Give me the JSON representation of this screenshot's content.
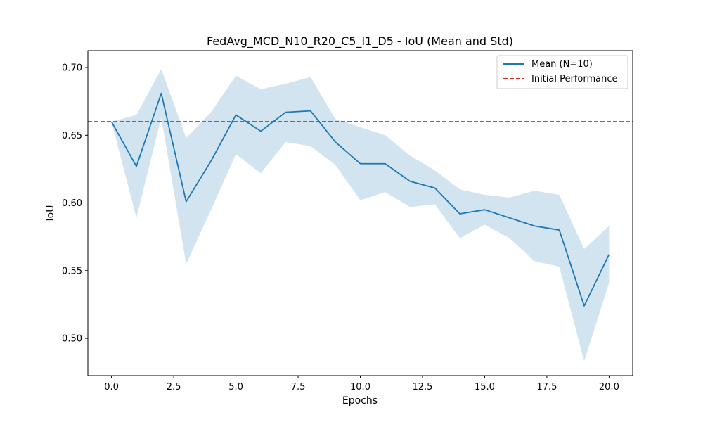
{
  "chart_data": {
    "type": "line",
    "title": "FedAvg_MCD_N10_R20_C5_I1_D5 - IoU (Mean and Std)",
    "xlabel": "Epochs",
    "ylabel": "IoU",
    "xlim": [
      -0.95,
      20.95
    ],
    "ylim": [
      0.4725,
      0.7125
    ],
    "x_ticks": [
      0,
      2.5,
      5,
      7.5,
      10,
      12.5,
      15,
      17.5,
      20
    ],
    "x_tick_labels": [
      "0.0",
      "2.5",
      "5.0",
      "7.5",
      "10.0",
      "12.5",
      "15.0",
      "17.5",
      "20.0"
    ],
    "y_ticks": [
      0.5,
      0.55,
      0.6,
      0.65,
      0.7
    ],
    "y_tick_labels": [
      "0.50",
      "0.55",
      "0.60",
      "0.65",
      "0.70"
    ],
    "grid": false,
    "legend_position": "top-right",
    "x": [
      0,
      1,
      2,
      3,
      4,
      5,
      6,
      7,
      8,
      9,
      10,
      11,
      12,
      13,
      14,
      15,
      16,
      17,
      18,
      19,
      20
    ],
    "series": [
      {
        "name": "Mean (N=10)",
        "color": "#1f77b4",
        "values": [
          0.66,
          0.627,
          0.681,
          0.601,
          0.631,
          0.665,
          0.653,
          0.667,
          0.668,
          0.645,
          0.629,
          0.629,
          0.616,
          0.611,
          0.592,
          0.595,
          0.589,
          0.583,
          0.58,
          0.524,
          0.562
        ],
        "std_lower": [
          0.66,
          0.589,
          0.663,
          0.555,
          0.595,
          0.636,
          0.622,
          0.645,
          0.642,
          0.628,
          0.602,
          0.608,
          0.597,
          0.599,
          0.574,
          0.584,
          0.574,
          0.557,
          0.553,
          0.483,
          0.541
        ],
        "std_upper": [
          0.66,
          0.665,
          0.699,
          0.648,
          0.667,
          0.694,
          0.684,
          0.688,
          0.693,
          0.662,
          0.656,
          0.65,
          0.635,
          0.624,
          0.61,
          0.606,
          0.604,
          0.609,
          0.606,
          0.566,
          0.583
        ],
        "band_color": "#1f77b4"
      }
    ],
    "reference_line": {
      "name": "Initial Performance",
      "value": 0.66,
      "color": "#d62728",
      "style": "dashed"
    }
  }
}
